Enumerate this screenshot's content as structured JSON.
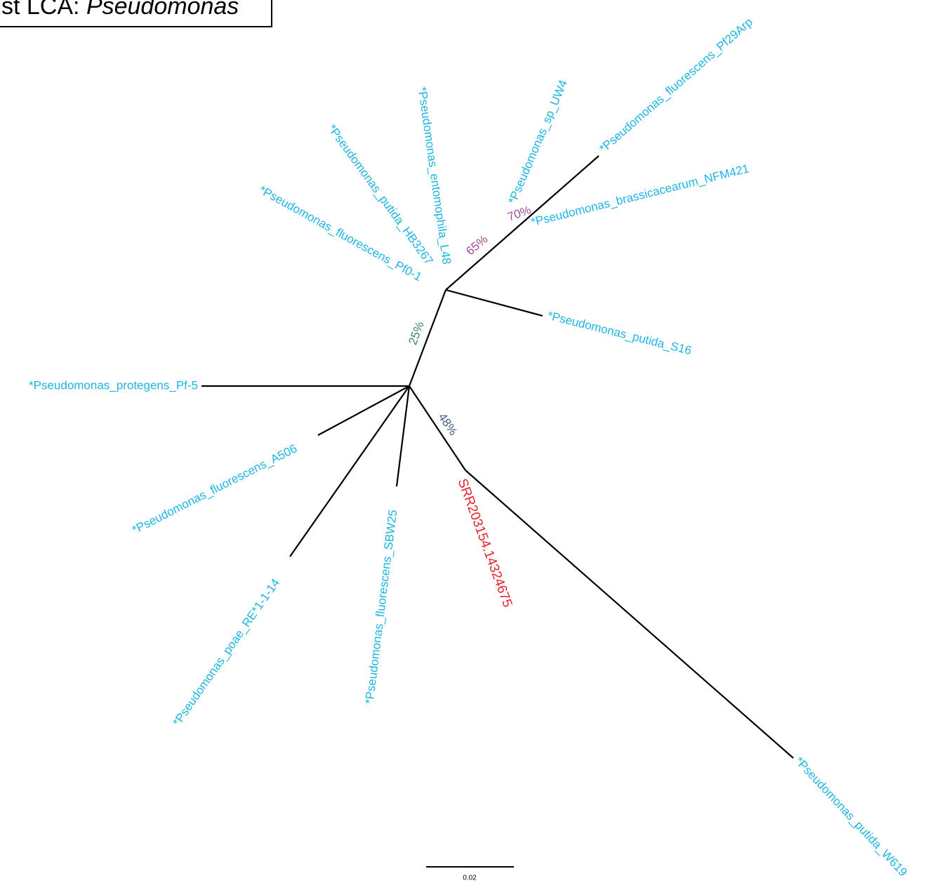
{
  "title": {
    "prefix": "st LCA:",
    "genus": "Pseudomonas"
  },
  "leaves": [
    "*Pseudomonas_protegens_Pf-5",
    "*Pseudomonas_fluorescens_A506",
    "*Pseudomonas_poae_RE*1-1-14",
    "*Pseudomonas_fluorescens_SBW25",
    "*Pseudomonas_putida_W619",
    "*Pseudomonas_putida_S16",
    "*Pseudomonas_brassicacearum_NFM421",
    "*Pseudomonas_sp_UW4",
    "*Pseudomonas_fluorescens_Pf29Arp",
    "*Pseudomonas_fluorescens_Pf0-1",
    "*Pseudomonas_putida_HB3267",
    "*Pseudomonas_entomophila_L48"
  ],
  "query": "SRR203154.14324675",
  "support": [
    "25%",
    "48%",
    "65%",
    "70%"
  ],
  "scale": "0.02"
}
